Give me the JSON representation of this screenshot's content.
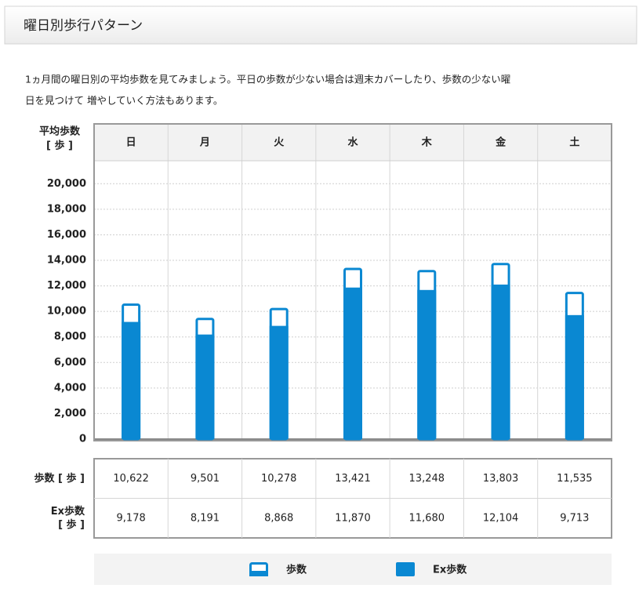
{
  "header": {
    "title": "曜日別歩行パターン"
  },
  "description": [
    "1ヵ月間の曜日別の平均歩数を見てみましょう。平日の歩数が少ない場合は週末カバーしたり、歩数の少ない曜",
    "日を見つけて 増やしていく方法もあります。"
  ],
  "chart_data": {
    "type": "bar",
    "y_label": [
      "平均歩数",
      "[ 歩 ]"
    ],
    "categories": [
      "日",
      "月",
      "火",
      "水",
      "木",
      "金",
      "土"
    ],
    "series": [
      {
        "name": "歩数",
        "color": "#0a88d2",
        "style": "outline",
        "table_label": [
          "歩数 [ 歩 ]"
        ],
        "values": [
          10622,
          9501,
          10278,
          13421,
          13248,
          13803,
          11535
        ],
        "value_labels": [
          "10,622",
          "9,501",
          "10,278",
          "13,421",
          "13,248",
          "13,803",
          "11,535"
        ]
      },
      {
        "name": "Ex歩数",
        "color": "#0a88d2",
        "style": "filled",
        "table_label": [
          "Ex歩数",
          "[ 歩 ]"
        ],
        "values": [
          9178,
          8191,
          8868,
          11870,
          11680,
          12104,
          9713
        ],
        "value_labels": [
          "9,178",
          "8,191",
          "8,868",
          "11,870",
          "11,680",
          "12,104",
          "9,713"
        ]
      }
    ],
    "ylim": [
      0,
      21800
    ],
    "yticks": [
      0,
      {
        "value": 2000,
        "label": "2,000"
      },
      {
        "value": 4000,
        "label": "4,000"
      },
      {
        "value": 6000,
        "label": "6,000"
      },
      {
        "value": 8000,
        "label": "8,000"
      },
      {
        "value": 10000,
        "label": "10,000"
      },
      {
        "value": 12000,
        "label": "12,000"
      },
      {
        "value": 14000,
        "label": "14,000"
      },
      {
        "value": 16000,
        "label": "16,000"
      },
      {
        "value": 18000,
        "label": "18,000"
      },
      {
        "value": 20000,
        "label": "20,000"
      }
    ],
    "grid": true
  }
}
